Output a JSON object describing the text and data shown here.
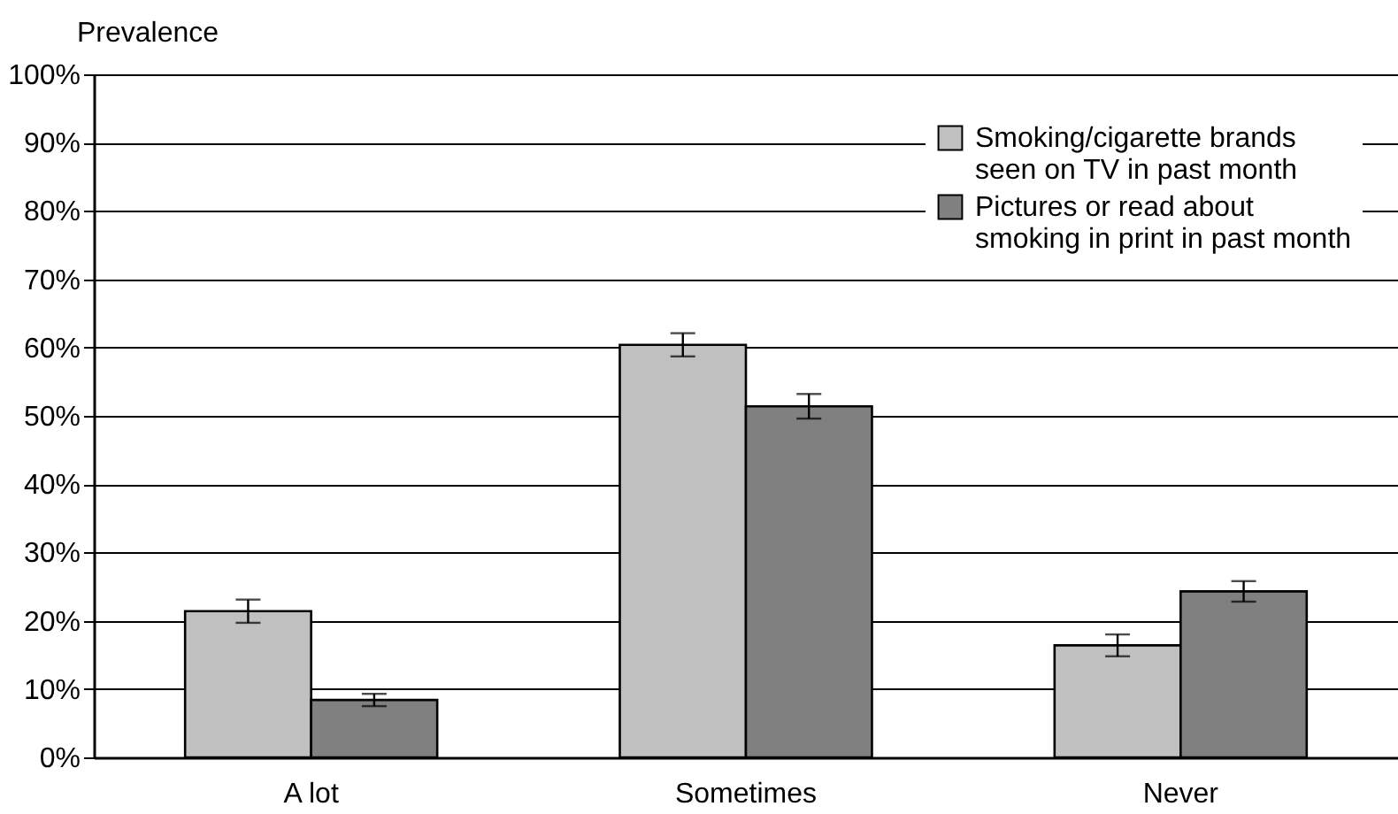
{
  "chart_data": {
    "type": "bar",
    "ylabel": "Prevalence",
    "categories": [
      "A lot",
      "Sometimes",
      "Never"
    ],
    "series": [
      {
        "name": "Smoking/cigarette brands seen on TV in past month",
        "color": "#c0c0c0",
        "values": [
          21.4,
          60.4,
          16.4
        ],
        "errors": [
          1.7,
          1.7,
          1.6
        ]
      },
      {
        "name": "Pictures or read about smoking in print in past month",
        "color": "#808080",
        "values": [
          8.4,
          51.4,
          24.3
        ],
        "errors": [
          0.9,
          1.8,
          1.5
        ]
      }
    ],
    "ylim": [
      0,
      100
    ],
    "yticks": [
      {
        "value": 0,
        "label": "0%"
      },
      {
        "value": 10,
        "label": "10%"
      },
      {
        "value": 20,
        "label": "20%"
      },
      {
        "value": 30,
        "label": "30%"
      },
      {
        "value": 40,
        "label": "40%"
      },
      {
        "value": 50,
        "label": "50%"
      },
      {
        "value": 60,
        "label": "60%"
      },
      {
        "value": 70,
        "label": "70%"
      },
      {
        "value": 80,
        "label": "80%"
      },
      {
        "value": 90,
        "label": "90%"
      },
      {
        "value": 100,
        "label": "100%"
      }
    ],
    "grid": "y",
    "legend": "top right"
  }
}
